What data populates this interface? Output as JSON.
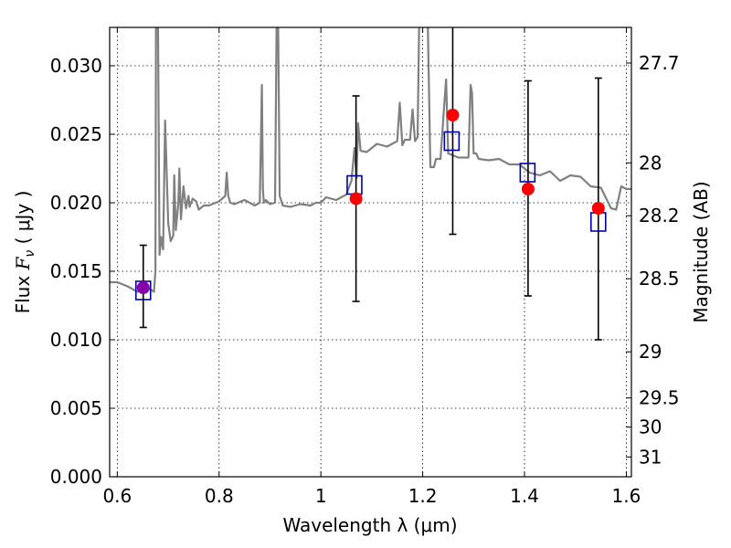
{
  "chart_data": {
    "type": "scatter",
    "xlabel": "Wavelength  λ (μm)",
    "ylabel_left": "Flux  F_ν  ( μJy )",
    "ylabel_left_parts": {
      "pre": "Flux ",
      "sym": "F",
      "sub": "ν",
      "post": "  ( μJy )"
    },
    "ylabel_right": "Magnitude (AB)",
    "xlim": [
      0.585,
      1.61
    ],
    "ylim": [
      0.0,
      0.0328
    ],
    "grid": true,
    "x_ticks": [
      0.6,
      0.8,
      1.0,
      1.2,
      1.4,
      1.6
    ],
    "x_tick_labels": [
      "0.6",
      "0.8",
      "1",
      "1.2",
      "1.4",
      "1.6"
    ],
    "y_ticks": [
      0.0,
      0.005,
      0.01,
      0.015,
      0.02,
      0.025,
      0.03
    ],
    "y_tick_labels": [
      "0.000",
      "0.005",
      "0.010",
      "0.015",
      "0.020",
      "0.025",
      "0.030"
    ],
    "right_ticks": [
      27.7,
      28,
      28.2,
      28.5,
      29,
      29.5,
      30,
      31
    ],
    "right_tick_labels": [
      "27.7",
      "28",
      "28.2",
      "28.5",
      "29",
      "29.5",
      "30",
      "31"
    ],
    "colors": {
      "spectrum": "#808080",
      "observed": "#ff0000",
      "model": "#0000aa",
      "blend": "#8800aa",
      "errorbar": "#000000"
    },
    "series": [
      {
        "kind": "spectrum",
        "x": [
          0.585,
          0.6,
          0.62,
          0.64,
          0.66,
          0.672,
          0.675,
          0.676,
          0.678,
          0.68,
          0.683,
          0.686,
          0.69,
          0.694,
          0.7,
          0.705,
          0.71,
          0.712,
          0.715,
          0.72,
          0.722,
          0.725,
          0.73,
          0.735,
          0.74,
          0.742,
          0.745,
          0.748,
          0.755,
          0.76,
          0.77,
          0.78,
          0.8,
          0.812,
          0.815,
          0.818,
          0.822,
          0.83,
          0.85,
          0.87,
          0.88,
          0.884,
          0.886,
          0.888,
          0.892,
          0.9,
          0.91,
          0.913,
          0.916,
          0.919,
          0.925,
          0.94,
          0.96,
          0.98,
          0.99,
          1.0,
          1.01,
          1.03,
          1.05,
          1.06,
          1.066,
          1.07,
          1.073,
          1.078,
          1.09,
          1.11,
          1.13,
          1.15,
          1.155,
          1.16,
          1.165,
          1.175,
          1.18,
          1.185,
          1.19,
          1.193,
          1.196,
          1.2,
          1.205,
          1.21,
          1.215,
          1.222,
          1.226,
          1.235,
          1.242,
          1.246,
          1.25,
          1.27,
          1.29,
          1.294,
          1.297,
          1.3,
          1.305,
          1.31,
          1.33,
          1.35,
          1.37,
          1.39,
          1.41,
          1.43,
          1.45,
          1.47,
          1.49,
          1.51,
          1.53,
          1.55,
          1.57,
          1.58,
          1.59,
          1.6,
          1.61
        ],
        "y": [
          0.0142,
          0.0142,
          0.0139,
          0.0135,
          0.0138,
          0.0135,
          0.015,
          0.033,
          0.033,
          0.033,
          0.0162,
          0.0175,
          0.0166,
          0.026,
          0.0185,
          0.0172,
          0.0176,
          0.022,
          0.018,
          0.02,
          0.0225,
          0.0188,
          0.0212,
          0.0196,
          0.0205,
          0.0197,
          0.02,
          0.0203,
          0.0201,
          0.0195,
          0.0198,
          0.0198,
          0.0201,
          0.0205,
          0.0222,
          0.0205,
          0.02,
          0.0199,
          0.0202,
          0.0198,
          0.02,
          0.0286,
          0.021,
          0.02,
          0.0202,
          0.0199,
          0.02,
          0.033,
          0.033,
          0.0205,
          0.0198,
          0.0197,
          0.0199,
          0.0198,
          0.02,
          0.02,
          0.0204,
          0.0202,
          0.0206,
          0.0216,
          0.024,
          0.0218,
          0.0258,
          0.0238,
          0.0237,
          0.0243,
          0.0241,
          0.0245,
          0.0273,
          0.0242,
          0.0246,
          0.0246,
          0.0268,
          0.0245,
          0.0248,
          0.033,
          0.033,
          0.033,
          0.033,
          0.033,
          0.0226,
          0.0226,
          0.0232,
          0.0232,
          0.027,
          0.029,
          0.0236,
          0.0233,
          0.0233,
          0.0286,
          0.028,
          0.0236,
          0.0236,
          0.0232,
          0.0231,
          0.0232,
          0.0228,
          0.0228,
          0.0222,
          0.022,
          0.0223,
          0.0216,
          0.022,
          0.0219,
          0.0212,
          0.0211,
          0.0196,
          0.0195,
          0.0212,
          0.021,
          0.021
        ]
      },
      {
        "kind": "model",
        "name": "model",
        "x": [
          0.651,
          1.066,
          1.257,
          1.406,
          1.545
        ],
        "y": [
          0.0136,
          0.0213,
          0.0245,
          0.0222,
          0.0186
        ]
      },
      {
        "kind": "observed",
        "name": "observed",
        "x": [
          0.651,
          1.069,
          1.259,
          1.407,
          1.545
        ],
        "y": [
          0.0138,
          0.0203,
          0.0264,
          0.021,
          0.0196
        ],
        "err_low": [
          0.0109,
          0.0128,
          0.0177,
          0.0132,
          0.01
        ],
        "err_high": [
          0.0169,
          0.0278,
          0.033,
          0.0289,
          0.0291
        ]
      }
    ]
  }
}
